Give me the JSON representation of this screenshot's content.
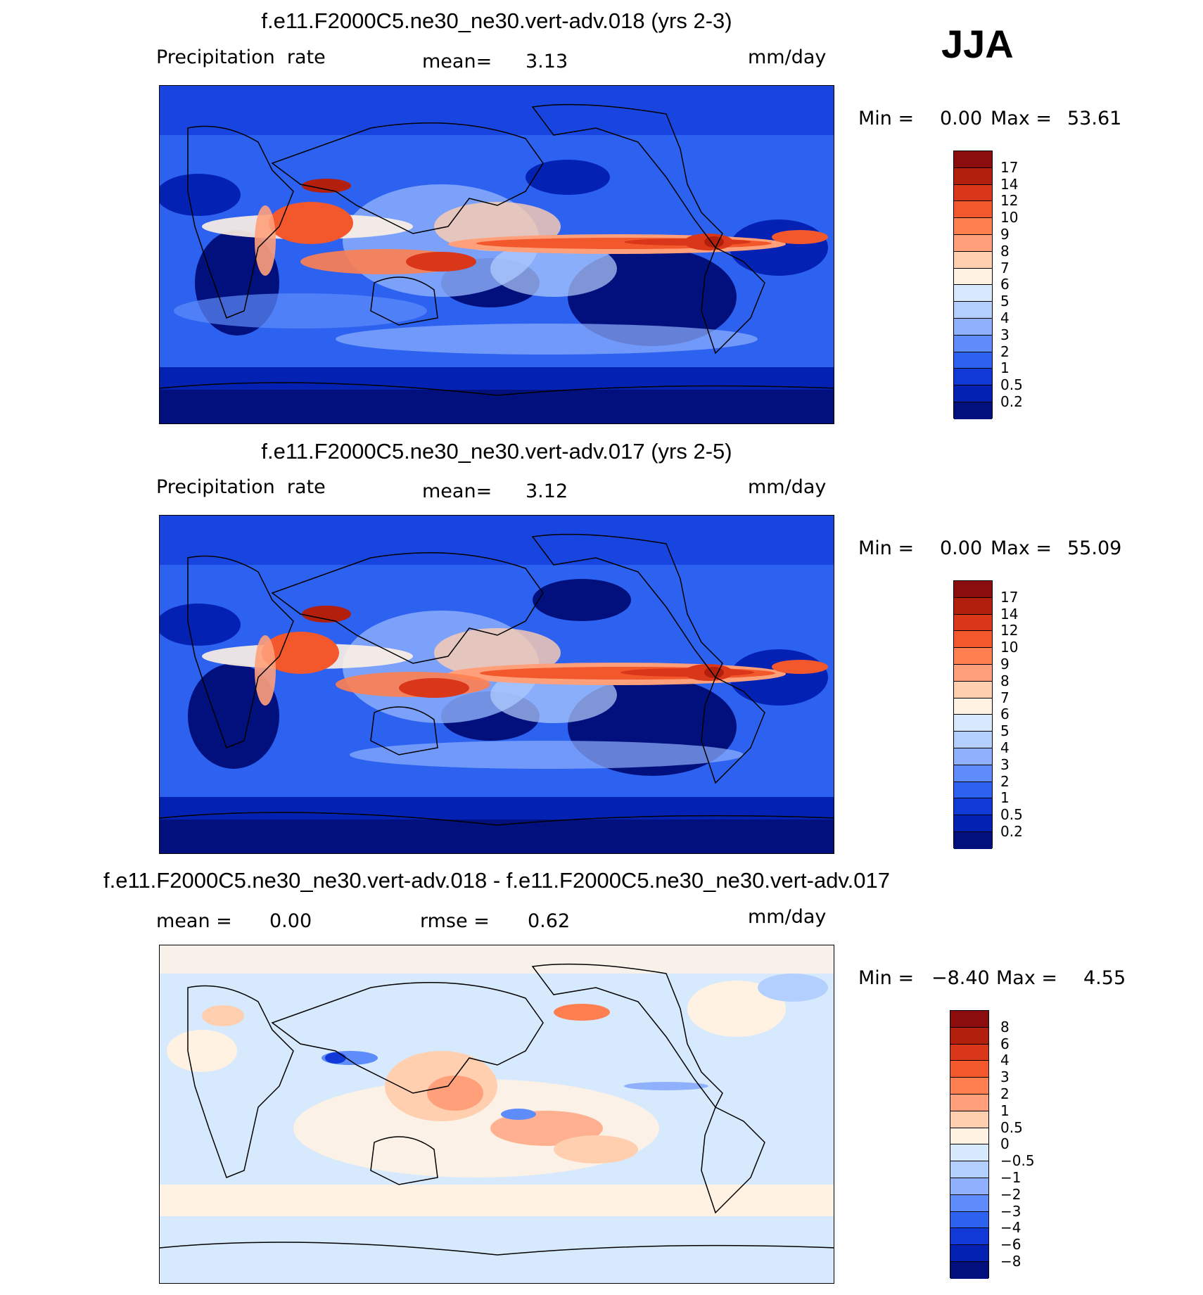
{
  "season": "JJA",
  "panels": [
    {
      "title": "f.e11.F2000C5.ne30_ne30.vert-adv.018 (yrs 2-3)",
      "variable": "Precipitation  rate",
      "stat_label": "mean=",
      "stat_value": "3.13",
      "units": "mm/day",
      "minmax": {
        "min_label": "Min  =",
        "min": "0.00",
        "max_label": "Max  =",
        "max": "53.61"
      },
      "colorbar": {
        "colors": [
          "#8b0d0d",
          "#b2200d",
          "#d9361a",
          "#f3572c",
          "#ff7f50",
          "#ffa07a",
          "#ffcfb0",
          "#fff2e3",
          "#d7e9fd",
          "#b3cffd",
          "#8fb1fd",
          "#5e8dfb",
          "#2d62f0",
          "#1039d8",
          "#0322b4",
          "#02107d"
        ],
        "labels": [
          "17",
          "14",
          "12",
          "10",
          "9",
          "8",
          "7",
          "6",
          "5",
          "4",
          "3",
          "2",
          "1",
          "0.5",
          "0.2"
        ]
      }
    },
    {
      "title": "f.e11.F2000C5.ne30_ne30.vert-adv.017 (yrs 2-5)",
      "variable": "Precipitation  rate",
      "stat_label": "mean=",
      "stat_value": "3.12",
      "units": "mm/day",
      "minmax": {
        "min_label": "Min  =",
        "min": "0.00",
        "max_label": "Max  =",
        "max": "55.09"
      },
      "colorbar": {
        "colors": [
          "#8b0d0d",
          "#b2200d",
          "#d9361a",
          "#f3572c",
          "#ff7f50",
          "#ffa07a",
          "#ffcfb0",
          "#fff2e3",
          "#d7e9fd",
          "#b3cffd",
          "#8fb1fd",
          "#5e8dfb",
          "#2d62f0",
          "#1039d8",
          "#0322b4",
          "#02107d"
        ],
        "labels": [
          "17",
          "14",
          "12",
          "10",
          "9",
          "8",
          "7",
          "6",
          "5",
          "4",
          "3",
          "2",
          "1",
          "0.5",
          "0.2"
        ]
      }
    },
    {
      "title": "f.e11.F2000C5.ne30_ne30.vert-adv.018 - f.e11.F2000C5.ne30_ne30.vert-adv.017",
      "mean_label": "mean =",
      "mean_value": "0.00",
      "rmse_label": "rmse =",
      "rmse_value": "0.62",
      "units": "mm/day",
      "minmax": {
        "min_label": "Min  =",
        "min": "−8.40",
        "max_label": "Max  =",
        "max": "4.55"
      },
      "colorbar": {
        "colors": [
          "#8b0d0d",
          "#b2200d",
          "#d9361a",
          "#f3572c",
          "#ff7f50",
          "#ffa07a",
          "#ffcfb0",
          "#fff2e3",
          "#d7e9fd",
          "#b3cffd",
          "#8fb1fd",
          "#5e8dfb",
          "#2d62f0",
          "#1039d8",
          "#0322b4",
          "#02107d"
        ],
        "labels": [
          "8",
          "6",
          "4",
          "3",
          "2",
          "1",
          "0.5",
          "0",
          "−0.5",
          "−1",
          "−2",
          "−3",
          "−4",
          "−6",
          "−8"
        ]
      }
    }
  ]
}
